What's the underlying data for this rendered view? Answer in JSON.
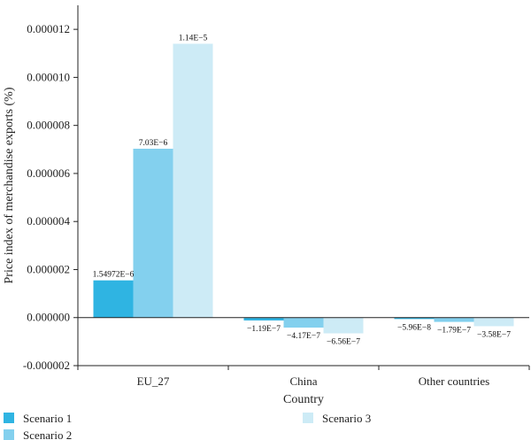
{
  "chart_data": {
    "type": "bar",
    "xlabel": "Country",
    "ylabel": "Price index of merchandise exports (%)",
    "ylim": [
      -2e-06,
      1.3e-05
    ],
    "yticks": [
      -2e-06,
      0,
      2e-06,
      4e-06,
      6e-06,
      8e-06,
      1e-05,
      1.2e-05
    ],
    "ytick_labels": [
      "-0.000002",
      "0.000000",
      "0.000002",
      "0.000004",
      "0.000006",
      "0.000008",
      "0.000010",
      "0.000012"
    ],
    "categories": [
      "EU_27",
      "China",
      "Other countries"
    ],
    "series": [
      {
        "name": "Scenario 1",
        "color": "#2fb4e2",
        "values": [
          1.54972e-06,
          -1.19e-07,
          -5.96e-08
        ],
        "labels": [
          "1.54972E−6",
          "−1.19E−7",
          "−5.96E−8"
        ]
      },
      {
        "name": "Scenario 2",
        "color": "#83d0ee",
        "values": [
          7.03e-06,
          -4.17e-07,
          -1.79e-07
        ],
        "labels": [
          "7.03E−6",
          "−4.17E−7",
          "−1.79E−7"
        ]
      },
      {
        "name": "Scenario 3",
        "color": "#cdebf6",
        "values": [
          1.14e-05,
          -6.56e-07,
          -3.58e-07
        ],
        "labels": [
          "1.14E−5",
          "−6.56E−7",
          "−3.58E−7"
        ]
      }
    ],
    "legend_position": "bottom",
    "grid": false
  }
}
